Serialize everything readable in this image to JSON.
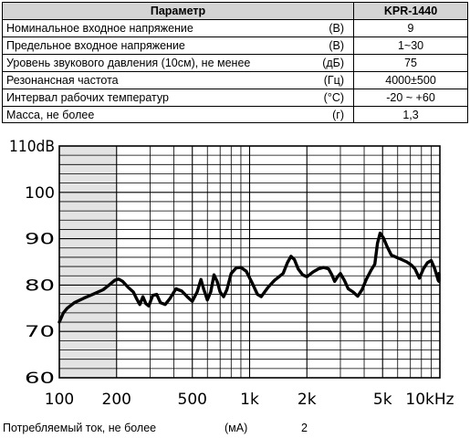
{
  "table": {
    "header": {
      "param": "Параметр",
      "model": "KPR-1440"
    },
    "rows": [
      {
        "name": "Номинальное входное напряжение",
        "unit": "(В)",
        "value": "9"
      },
      {
        "name": "Предельное входное напряжение",
        "unit": "(В)",
        "value": "1~30"
      },
      {
        "name": "Уровень звукового давления (10см), не менее",
        "unit": "(дБ)",
        "value": "75"
      },
      {
        "name": "Резонансная частота",
        "unit": "(Гц)",
        "value": "4000±500"
      },
      {
        "name": "Интервал рабочих температур",
        "unit": "(°С)",
        "value": "-20 ~ +60"
      },
      {
        "name": "Масса, не более",
        "unit": "(г)",
        "value": "1,3"
      }
    ]
  },
  "chart_data": {
    "type": "line",
    "x_scale": "log",
    "xlim": [
      100,
      10000
    ],
    "ylim": [
      60,
      110
    ],
    "grid": true,
    "y_ticks": [
      {
        "value": 60,
        "label": "60"
      },
      {
        "value": 70,
        "label": "70"
      },
      {
        "value": 80,
        "label": "80"
      },
      {
        "value": 90,
        "label": "90"
      },
      {
        "value": 100,
        "label": "100"
      },
      {
        "value": 110,
        "label": "110dB"
      }
    ],
    "x_ticks": [
      {
        "value": 100,
        "label": "100"
      },
      {
        "value": 200,
        "label": "200"
      },
      {
        "value": 500,
        "label": "500"
      },
      {
        "value": 1000,
        "label": "1k"
      },
      {
        "value": 2000,
        "label": "2k"
      },
      {
        "value": 5000,
        "label": "5k"
      },
      {
        "value": 10000,
        "label": "10kHz"
      }
    ],
    "shaded_band": [
      100,
      200
    ],
    "series": [
      {
        "points": [
          [
            100,
            72
          ],
          [
            105,
            74
          ],
          [
            110,
            75
          ],
          [
            120,
            76.2
          ],
          [
            135,
            77.2
          ],
          [
            150,
            78
          ],
          [
            170,
            79
          ],
          [
            185,
            80.2
          ],
          [
            195,
            81
          ],
          [
            205,
            81.3
          ],
          [
            215,
            80.8
          ],
          [
            230,
            79.5
          ],
          [
            245,
            78.5
          ],
          [
            255,
            77
          ],
          [
            265,
            75.8
          ],
          [
            275,
            77.5
          ],
          [
            285,
            76
          ],
          [
            295,
            75.5
          ],
          [
            310,
            77.8
          ],
          [
            325,
            78
          ],
          [
            340,
            76.2
          ],
          [
            360,
            75.8
          ],
          [
            380,
            77
          ],
          [
            410,
            79.2
          ],
          [
            440,
            78.7
          ],
          [
            470,
            77.5
          ],
          [
            500,
            76.5
          ],
          [
            530,
            78.5
          ],
          [
            555,
            81.2
          ],
          [
            575,
            79
          ],
          [
            600,
            76.8
          ],
          [
            625,
            78.5
          ],
          [
            650,
            82.2
          ],
          [
            675,
            80.8
          ],
          [
            700,
            78.5
          ],
          [
            730,
            77.5
          ],
          [
            760,
            79
          ],
          [
            800,
            82.5
          ],
          [
            850,
            83.7
          ],
          [
            900,
            83.8
          ],
          [
            960,
            83
          ],
          [
            1030,
            80.5
          ],
          [
            1100,
            78
          ],
          [
            1150,
            77.5
          ],
          [
            1250,
            79.5
          ],
          [
            1350,
            81
          ],
          [
            1500,
            82.5
          ],
          [
            1580,
            84.8
          ],
          [
            1650,
            86.2
          ],
          [
            1720,
            85.5
          ],
          [
            1800,
            83.5
          ],
          [
            1900,
            82.2
          ],
          [
            2000,
            81.8
          ],
          [
            2150,
            82.8
          ],
          [
            2300,
            83.5
          ],
          [
            2450,
            83.8
          ],
          [
            2600,
            83.5
          ],
          [
            2700,
            82.3
          ],
          [
            2800,
            80.8
          ],
          [
            2900,
            81.8
          ],
          [
            3000,
            82.5
          ],
          [
            3150,
            81
          ],
          [
            3300,
            79.2
          ],
          [
            3500,
            78.5
          ],
          [
            3700,
            77.6
          ],
          [
            3900,
            79
          ],
          [
            4100,
            81.2
          ],
          [
            4350,
            83.2
          ],
          [
            4550,
            84.5
          ],
          [
            4700,
            89
          ],
          [
            4850,
            91.2
          ],
          [
            5050,
            90.2
          ],
          [
            5250,
            88.5
          ],
          [
            5550,
            86.5
          ],
          [
            5900,
            86
          ],
          [
            6300,
            85.5
          ],
          [
            6700,
            85
          ],
          [
            7100,
            84.3
          ],
          [
            7400,
            83.5
          ],
          [
            7800,
            81.5
          ],
          [
            8200,
            83.5
          ],
          [
            8600,
            84.8
          ],
          [
            9000,
            85.3
          ],
          [
            9400,
            83.5
          ],
          [
            9800,
            81
          ],
          [
            10000,
            80.8
          ],
          [
            10300,
            82.5
          ],
          [
            10600,
            81.5
          ],
          [
            10900,
            82
          ]
        ]
      }
    ]
  },
  "footer": {
    "label": "Потребляемый ток, не более",
    "unit": "(мА)",
    "value": "2"
  }
}
